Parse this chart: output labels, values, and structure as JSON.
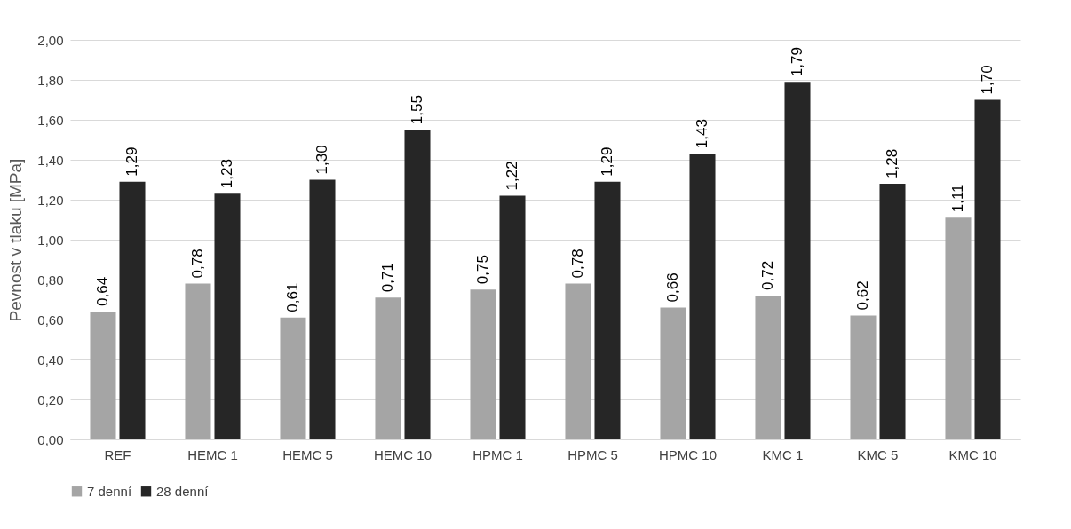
{
  "chart_data": {
    "type": "bar",
    "ylabel": "Pevnost v tlaku [MPa]",
    "categories": [
      "REF",
      "HEMC 1",
      "HEMC 5",
      "HEMC 10",
      "HPMC 1",
      "HPMC 5",
      "HPMC 10",
      "KMC 1",
      "KMC 5",
      "KMC 10"
    ],
    "series": [
      {
        "name": "7 denní",
        "color": "#a5a5a5",
        "values": [
          0.64,
          0.78,
          0.61,
          0.71,
          0.75,
          0.78,
          0.66,
          0.72,
          0.62,
          1.11
        ],
        "value_labels": [
          "0,64",
          "0,78",
          "0,61",
          "0,71",
          "0,75",
          "0,78",
          "0,66",
          "0,72",
          "0,62",
          "1,11"
        ]
      },
      {
        "name": "28 denní",
        "color": "#262626",
        "values": [
          1.29,
          1.23,
          1.3,
          1.55,
          1.22,
          1.29,
          1.43,
          1.79,
          1.28,
          1.7
        ],
        "value_labels": [
          "1,29",
          "1,23",
          "1,30",
          "1,55",
          "1,22",
          "1,29",
          "1,43",
          "1,79",
          "1,28",
          "1,70"
        ]
      }
    ],
    "ylim": [
      0,
      2
    ],
    "yticks": [
      {
        "value": 0,
        "label": "0,00"
      },
      {
        "value": 0.2,
        "label": "0,20"
      },
      {
        "value": 0.4,
        "label": "0,40"
      },
      {
        "value": 0.6,
        "label": "0,60"
      },
      {
        "value": 0.8,
        "label": "0,80"
      },
      {
        "value": 1,
        "label": "1,00"
      },
      {
        "value": 1.2,
        "label": "1,20"
      },
      {
        "value": 1.4,
        "label": "1,40"
      },
      {
        "value": 1.6,
        "label": "1,60"
      },
      {
        "value": 1.8,
        "label": "1,80"
      },
      {
        "value": 2,
        "label": "2,00"
      }
    ],
    "grid": "y",
    "legend": "bottom"
  }
}
